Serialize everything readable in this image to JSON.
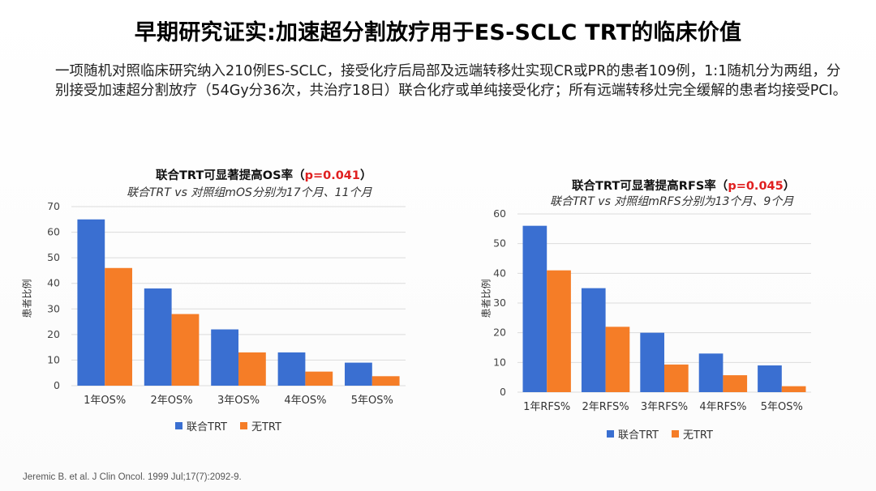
{
  "slide": {
    "title": "早期研究证实:加速超分割放疗用于ES-SCLC TRT的临床价值",
    "description": "一项随机对照临床研究纳入210例ES-SCLC，接受化疗后局部及远端转移灶实现CR或PR的患者109例，1:1随机分为两组，分别接受加速超分割放疗（54Gy分36次，共治疗18日）联合化疗或单纯接受化疗；所有远端转移灶完全缓解的患者均接受PCI。",
    "citation": "Jeremic B. et al. J Clin Oncol. 1999 Jul;17(7):2092-9."
  },
  "colors": {
    "series_a": "#3a6fd1",
    "series_b": "#f57d27",
    "pvalue": "#e01f1f",
    "gridline": "#dcdcdc"
  },
  "chart_data": [
    {
      "type": "bar",
      "title_main": "联合TRT可显著提高OS率（",
      "title_p": "p=0.041",
      "title_close": "）",
      "subtitle": "联合TRT vs 对照组mOS分别为17个月、11个月",
      "xlabel": "",
      "ylabel": "患者比例",
      "ylim": [
        0,
        70
      ],
      "yticks": [
        0,
        10,
        20,
        30,
        40,
        50,
        60,
        70
      ],
      "grid": true,
      "legend_position": "bottom",
      "categories": [
        "1年OS%",
        "2年OS%",
        "3年OS%",
        "4年OS%",
        "5年OS%"
      ],
      "series": [
        {
          "name": "联合TRT",
          "values": [
            65,
            38,
            22,
            13,
            9
          ]
        },
        {
          "name": "无TRT",
          "values": [
            46,
            28,
            13,
            5.5,
            3.7
          ]
        }
      ]
    },
    {
      "type": "bar",
      "title_main": "联合TRT可显著提高RFS率（",
      "title_p": "p=0.045",
      "title_close": "）",
      "subtitle": "联合TRT vs 对照组mRFS分别为13个月、9个月",
      "xlabel": "",
      "ylabel": "患者比例",
      "ylim": [
        0,
        60
      ],
      "yticks": [
        0,
        10,
        20,
        30,
        40,
        50,
        60
      ],
      "grid": true,
      "legend_position": "bottom",
      "categories": [
        "1年RFS%",
        "2年RFS%",
        "3年RFS%",
        "4年RFS%",
        "5年OS%"
      ],
      "series": [
        {
          "name": "联合TRT",
          "values": [
            56,
            35,
            20,
            13,
            9
          ]
        },
        {
          "name": "无TRT",
          "values": [
            41,
            22,
            9.3,
            5.7,
            2
          ]
        }
      ]
    }
  ]
}
